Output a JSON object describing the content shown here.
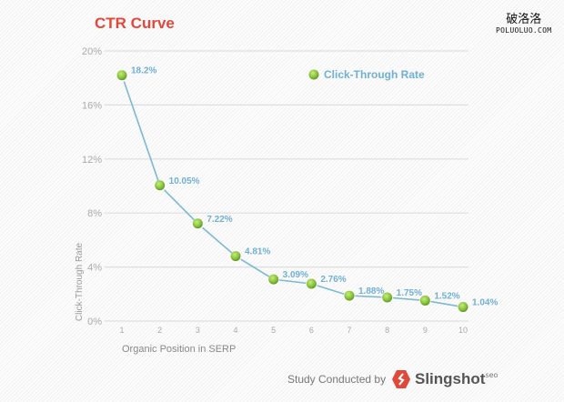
{
  "watermark": {
    "cn": "破洛洛",
    "en": "POLUOLUO.COM"
  },
  "footer": {
    "credit": "Study Conducted by",
    "brand": "Slingshot",
    "brand_sup": "seo",
    "brand_color": "#e0483a"
  },
  "chart_data": {
    "type": "line",
    "title": "CTR Curve",
    "xlabel": "Organic Position in SERP",
    "ylabel": "Click-Through Rate",
    "x": [
      1,
      2,
      3,
      4,
      5,
      6,
      7,
      8,
      9,
      10
    ],
    "series": [
      {
        "name": "Click-Through Rate",
        "values": [
          18.2,
          10.05,
          7.22,
          4.81,
          3.09,
          2.76,
          1.88,
          1.75,
          1.52,
          1.04
        ],
        "labels": [
          "18.2%",
          "10.05%",
          "7.22%",
          "4.81%",
          "3.09%",
          "2.76%",
          "1.88%",
          "1.75%",
          "1.52%",
          "1.04%"
        ]
      }
    ],
    "ylim": [
      0,
      20
    ],
    "yticks": [
      "0%",
      "4%",
      "8%",
      "12%",
      "16%",
      "20%"
    ],
    "xticks": [
      "1",
      "2",
      "3",
      "4",
      "5",
      "6",
      "7",
      "8",
      "9",
      "10"
    ],
    "grid": true,
    "legend": "top-right",
    "colors": {
      "line": "#7bb8d6",
      "marker": "#8cc63f",
      "label": "#6fb0d4",
      "title": "#e0483a"
    }
  }
}
